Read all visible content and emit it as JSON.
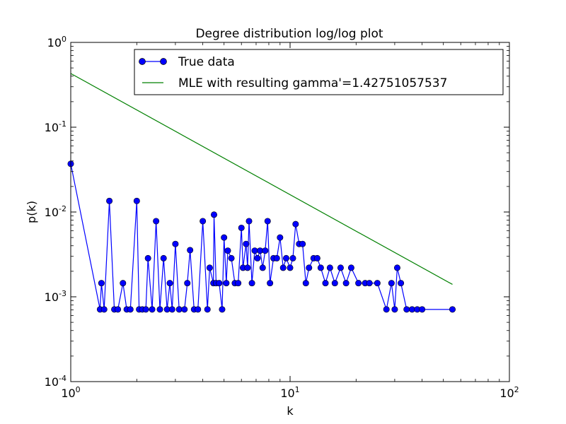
{
  "chart_data": {
    "type": "line",
    "title": "Degree distribution log/log plot",
    "xlabel": "k",
    "ylabel": "p(k)",
    "xscale": "log",
    "yscale": "log",
    "xlim": [
      1,
      100
    ],
    "ylim": [
      0.0001,
      1
    ],
    "x_ticks": [
      {
        "value": 1,
        "base": "10",
        "exp": "0"
      },
      {
        "value": 10,
        "base": "10",
        "exp": "1"
      },
      {
        "value": 100,
        "base": "10",
        "exp": "2"
      }
    ],
    "y_ticks": [
      {
        "value": 0.0001,
        "base": "10",
        "exp": "-4"
      },
      {
        "value": 0.001,
        "base": "10",
        "exp": "-3"
      },
      {
        "value": 0.01,
        "base": "10",
        "exp": "-2"
      },
      {
        "value": 0.1,
        "base": "10",
        "exp": "-1"
      },
      {
        "value": 1,
        "base": "10",
        "exp": "0"
      }
    ],
    "grid": false,
    "legend_placement": "top-center",
    "series": [
      {
        "name": "True data",
        "color": "#0000ff",
        "style": "line-with-circle-markers",
        "points": [
          [
            1.0,
            0.037
          ],
          [
            1.36,
            0.00071
          ],
          [
            1.38,
            0.00145
          ],
          [
            1.42,
            0.00071
          ],
          [
            1.5,
            0.0135
          ],
          [
            1.58,
            0.00071
          ],
          [
            1.64,
            0.00071
          ],
          [
            1.73,
            0.00145
          ],
          [
            1.8,
            0.00071
          ],
          [
            1.87,
            0.00071
          ],
          [
            2.0,
            0.0135
          ],
          [
            2.05,
            0.00071
          ],
          [
            2.12,
            0.00071
          ],
          [
            2.2,
            0.00071
          ],
          [
            2.25,
            0.00285
          ],
          [
            2.35,
            0.00071
          ],
          [
            2.45,
            0.0078
          ],
          [
            2.55,
            0.00071
          ],
          [
            2.65,
            0.00285
          ],
          [
            2.75,
            0.00071
          ],
          [
            2.83,
            0.00145
          ],
          [
            2.9,
            0.00071
          ],
          [
            3.0,
            0.0042
          ],
          [
            3.12,
            0.00071
          ],
          [
            3.3,
            0.00071
          ],
          [
            3.4,
            0.00145
          ],
          [
            3.5,
            0.00355
          ],
          [
            3.65,
            0.00071
          ],
          [
            3.8,
            0.00071
          ],
          [
            4.0,
            0.0078
          ],
          [
            4.2,
            0.00071
          ],
          [
            4.3,
            0.0022
          ],
          [
            4.47,
            0.00145
          ],
          [
            4.5,
            0.0093
          ],
          [
            4.6,
            0.00145
          ],
          [
            4.75,
            0.00145
          ],
          [
            4.9,
            0.00071
          ],
          [
            5.0,
            0.005
          ],
          [
            5.12,
            0.00145
          ],
          [
            5.2,
            0.0035
          ],
          [
            5.4,
            0.00285
          ],
          [
            5.6,
            0.00145
          ],
          [
            5.8,
            0.00145
          ],
          [
            6.0,
            0.0065
          ],
          [
            6.1,
            0.0022
          ],
          [
            6.3,
            0.0042
          ],
          [
            6.4,
            0.0022
          ],
          [
            6.5,
            0.0078
          ],
          [
            6.7,
            0.00145
          ],
          [
            6.9,
            0.0035
          ],
          [
            7.1,
            0.00285
          ],
          [
            7.3,
            0.0035
          ],
          [
            7.5,
            0.0022
          ],
          [
            7.7,
            0.0035
          ],
          [
            7.9,
            0.0078
          ],
          [
            8.1,
            0.00145
          ],
          [
            8.4,
            0.00285
          ],
          [
            8.7,
            0.00285
          ],
          [
            9.0,
            0.005
          ],
          [
            9.3,
            0.0022
          ],
          [
            9.6,
            0.00285
          ],
          [
            10.0,
            0.0022
          ],
          [
            10.3,
            0.00285
          ],
          [
            10.6,
            0.0072
          ],
          [
            11.0,
            0.0042
          ],
          [
            11.4,
            0.0042
          ],
          [
            11.8,
            0.00145
          ],
          [
            12.2,
            0.0022
          ],
          [
            12.8,
            0.00285
          ],
          [
            13.3,
            0.00285
          ],
          [
            13.8,
            0.0022
          ],
          [
            14.5,
            0.00145
          ],
          [
            15.2,
            0.0022
          ],
          [
            16.0,
            0.00145
          ],
          [
            17.0,
            0.0022
          ],
          [
            18.0,
            0.00145
          ],
          [
            19.0,
            0.0022
          ],
          [
            20.5,
            0.00145
          ],
          [
            22.0,
            0.00145
          ],
          [
            23.0,
            0.00145
          ],
          [
            25.0,
            0.00145
          ],
          [
            27.5,
            0.00071
          ],
          [
            29.0,
            0.00145
          ],
          [
            30.0,
            0.00071
          ],
          [
            30.8,
            0.0022
          ],
          [
            32.0,
            0.00145
          ],
          [
            34.0,
            0.00071
          ],
          [
            36.0,
            0.00071
          ],
          [
            38.0,
            0.00071
          ],
          [
            40.0,
            0.00071
          ],
          [
            55.0,
            0.00071
          ]
        ]
      },
      {
        "name": "MLE with resulting gamma'=1.42751057537",
        "color": "#008000",
        "style": "line",
        "points": [
          [
            1.0,
            0.43
          ],
          [
            55.0,
            0.0014
          ]
        ]
      }
    ]
  }
}
